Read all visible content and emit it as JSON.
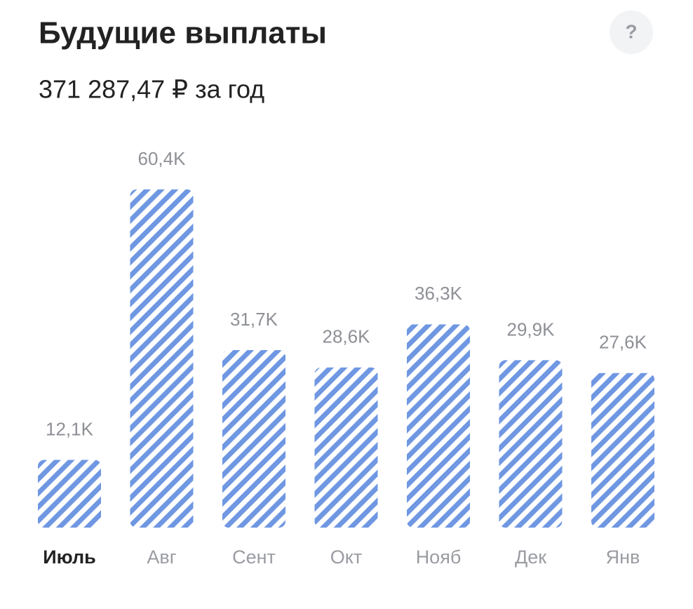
{
  "help_button": "?",
  "chart_data": {
    "type": "bar",
    "title": "Будущие выплаты",
    "subtitle": "371 287,47 ₽ за год",
    "categories": [
      "Июль",
      "Авг",
      "Сент",
      "Окт",
      "Нояб",
      "Дек",
      "Янв"
    ],
    "values": [
      12.1,
      60.4,
      31.7,
      28.6,
      36.3,
      29.9,
      27.6
    ],
    "value_labels": [
      "12,1K",
      "60,4K",
      "31,7K",
      "28,6K",
      "36,3K",
      "29,9K",
      "27,6K"
    ],
    "color": "#6f97e2",
    "highlight_index": 0
  }
}
